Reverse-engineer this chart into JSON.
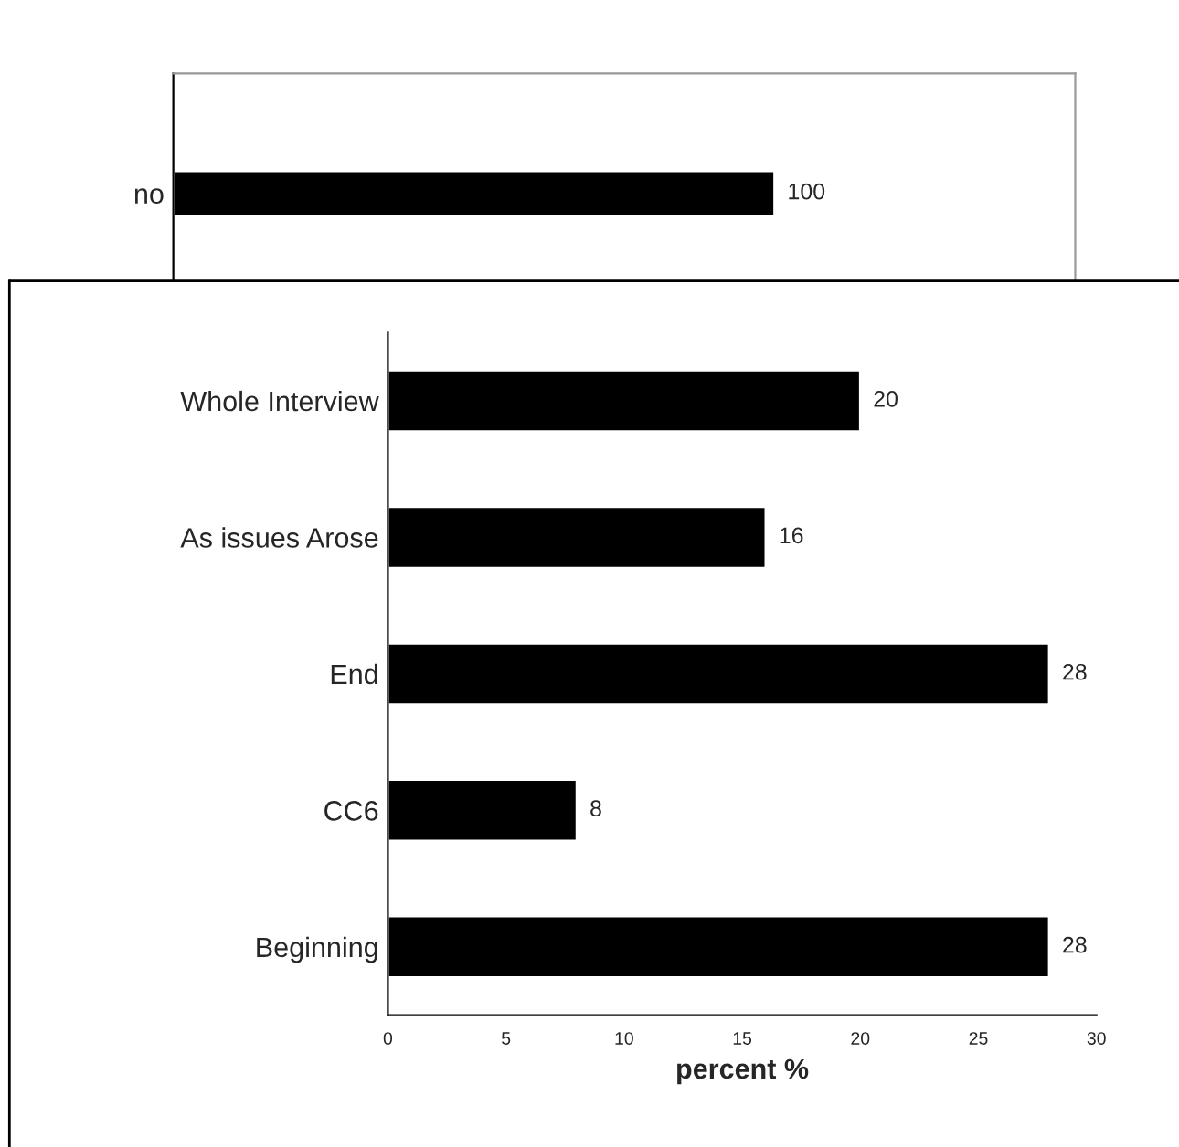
{
  "chart_data": [
    {
      "type": "bar",
      "orientation": "horizontal",
      "categories": [
        "no"
      ],
      "values": [
        100
      ],
      "color": "#000000",
      "data_labels": true,
      "tick_labels": "y",
      "grid": false
    },
    {
      "type": "bar",
      "orientation": "horizontal",
      "categories": [
        "Whole Interview",
        "As issues Arose",
        "End",
        "CC6",
        "Beginning"
      ],
      "values": [
        20,
        16,
        28,
        8,
        28
      ],
      "color": "#000000",
      "data_labels": true,
      "xlim": [
        0,
        30
      ],
      "xticks": [
        0,
        5,
        10,
        15,
        20,
        25,
        30
      ],
      "xlabel": "percent %",
      "grid": false
    }
  ]
}
